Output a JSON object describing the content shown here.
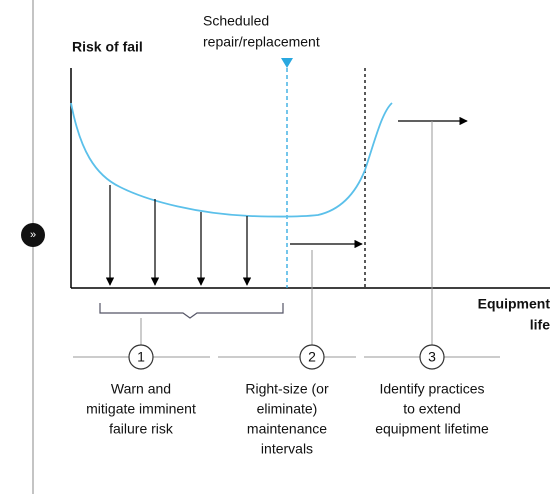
{
  "y_axis_label": "Risk of fail",
  "callout": [
    "Scheduled",
    "repair/replacement"
  ],
  "x_axis_label": [
    "Equipment",
    "life"
  ],
  "steps": [
    {
      "number": "1",
      "lines": [
        "Warn and",
        "mitigate imminent",
        "failure risk"
      ]
    },
    {
      "number": "2",
      "lines": [
        "Right-size (or",
        "eliminate)",
        "maintenance",
        "intervals"
      ]
    },
    {
      "number": "3",
      "lines": [
        "Identify practices",
        "to extend",
        "equipment lifetime"
      ]
    }
  ]
}
